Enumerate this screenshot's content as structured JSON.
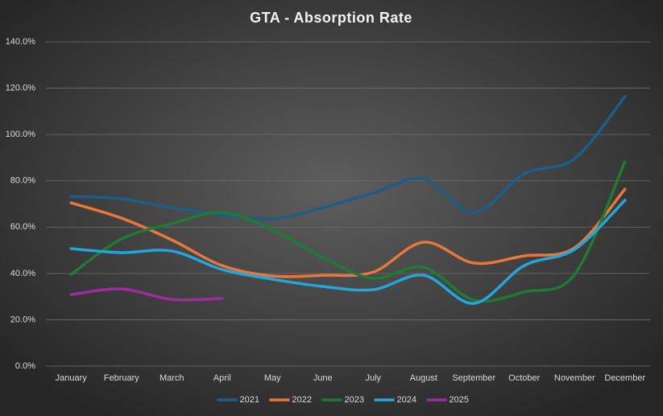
{
  "chart_data": {
    "type": "line",
    "title": "GTA - Absorption Rate",
    "categories": [
      "January",
      "February",
      "March",
      "April",
      "May",
      "June",
      "July",
      "August",
      "September",
      "October",
      "November",
      "December"
    ],
    "series": [
      {
        "name": "2021",
        "color": "#1b5e87",
        "values": [
          73.3,
          72.2,
          68.4,
          65.3,
          63.6,
          68.4,
          74.7,
          80.9,
          66.3,
          83.0,
          89.6,
          116.4
        ]
      },
      {
        "name": "2022",
        "color": "#e8773a",
        "values": [
          70.5,
          63.9,
          54.5,
          43.4,
          38.9,
          39.2,
          40.6,
          53.5,
          44.5,
          47.6,
          51.1,
          76.4
        ]
      },
      {
        "name": "2023",
        "color": "#1e7b34",
        "values": [
          39.6,
          54.9,
          61.5,
          66.3,
          59.0,
          46.9,
          37.9,
          42.7,
          28.5,
          32.0,
          39.6,
          88.2
        ]
      },
      {
        "name": "2024",
        "color": "#22a6dc",
        "values": [
          50.7,
          49.0,
          49.7,
          41.7,
          37.5,
          34.4,
          33.0,
          39.2,
          27.1,
          43.4,
          50.4,
          71.6
        ]
      },
      {
        "name": "2025",
        "color": "#9b2e9b",
        "values": [
          30.9,
          33.3,
          28.8,
          29.2,
          null,
          null,
          null,
          null,
          null,
          null,
          null,
          null
        ]
      }
    ],
    "ylim": [
      0,
      140
    ],
    "yticks": [
      {
        "value": 0,
        "label": "0.0%"
      },
      {
        "value": 20,
        "label": "20.0%"
      },
      {
        "value": 40,
        "label": "40.0%"
      },
      {
        "value": 60,
        "label": "60.0%"
      },
      {
        "value": 80,
        "label": "80.0%"
      },
      {
        "value": 100,
        "label": "100.0%"
      },
      {
        "value": 120,
        "label": "120.0%"
      },
      {
        "value": 140,
        "label": "140.0%"
      }
    ],
    "grid": true,
    "smooth": true,
    "legend": "bottom"
  }
}
